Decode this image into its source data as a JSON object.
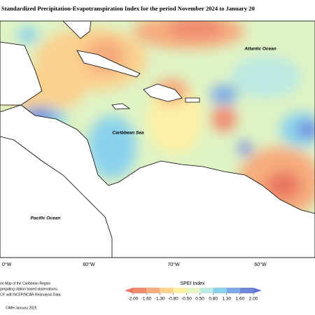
{
  "header": {
    "title": "Standardized Precipitation-Evapotranspiration Index for the period November 2024 to January 20"
  },
  "map": {
    "labels": [
      "Atlantic Ocean",
      "Caribbean Sea",
      "Pacific Ocean"
    ],
    "lon_labels": [
      "0°W",
      "80°W",
      "70°W",
      "60°W"
    ]
  },
  "legend": {
    "title": "SPEI Index",
    "ticks": [
      {
        "value": -2,
        "label": "-2.00"
      },
      {
        "value": -1.6,
        "label": "-1.60"
      },
      {
        "value": -1.3,
        "label": "-1.30"
      },
      {
        "value": -0.8,
        "label": "-0.80"
      },
      {
        "value": -0.5,
        "label": "-0.50"
      },
      {
        "value": 0.5,
        "label": "0.50"
      },
      {
        "value": 0.8,
        "label": "0.80"
      },
      {
        "value": 1.3,
        "label": "1.30"
      },
      {
        "value": 1.6,
        "label": "1.60"
      },
      {
        "value": 2,
        "label": "2.00"
      }
    ],
    "colors": [
      "#f08a6e",
      "#f6ad80",
      "#fbd18f",
      "#fdf0a6",
      "#e6f5c3",
      "#bce9e3",
      "#8bd1ee",
      "#7eabe8",
      "#6f86dc"
    ],
    "low_color": "#e8765e",
    "high_color": "#6274d4"
  },
  "notes": [
    "on Map of the Caribbean Region",
    "gregating station based observations,",
    "CF, with NCEP/NCAR Reanalysis Data.",
    "CIMH January 2025"
  ]
}
